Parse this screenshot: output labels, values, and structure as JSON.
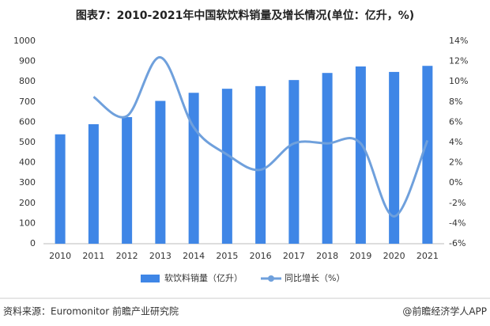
{
  "chart_data": {
    "type": "bar-line",
    "title": "图表7：2010-2021年中国软饮料销量及增长情况(单位：亿升，%)",
    "categories": [
      "2010",
      "2011",
      "2012",
      "2013",
      "2014",
      "2015",
      "2016",
      "2017",
      "2018",
      "2019",
      "2020",
      "2021"
    ],
    "series": [
      {
        "name": "软饮料销量（亿升）",
        "type": "bar",
        "color": "#3f86e6",
        "values": [
          540,
          590,
          625,
          705,
          745,
          765,
          778,
          808,
          843,
          875,
          848,
          878
        ]
      },
      {
        "name": "同比增长（%）",
        "type": "line",
        "axis": "y2",
        "color": "#6fa0dc",
        "values": [
          null,
          8.5,
          6.6,
          12.4,
          5.5,
          2.8,
          1.3,
          3.9,
          3.9,
          3.9,
          -3.3,
          4.2
        ]
      }
    ],
    "ylim": [
      0,
      1000
    ],
    "yticks": [
      0,
      100,
      200,
      300,
      400,
      500,
      600,
      700,
      800,
      900,
      1000
    ],
    "y2lim": [
      -6,
      14
    ],
    "y2ticks": [
      {
        "value": -6,
        "label": "-6%"
      },
      {
        "value": -4,
        "label": "-4%"
      },
      {
        "value": -2,
        "label": "-2%"
      },
      {
        "value": 0,
        "label": "0%"
      },
      {
        "value": 2,
        "label": "2%"
      },
      {
        "value": 4,
        "label": "4%"
      },
      {
        "value": 6,
        "label": "6%"
      },
      {
        "value": 8,
        "label": "8%"
      },
      {
        "value": 10,
        "label": "10%"
      },
      {
        "value": 12,
        "label": "12%"
      },
      {
        "value": 14,
        "label": "14%"
      }
    ],
    "source": "资料来源：Euromonitor 前瞻产业研究院",
    "credit": "@前瞻经济学人APP"
  }
}
